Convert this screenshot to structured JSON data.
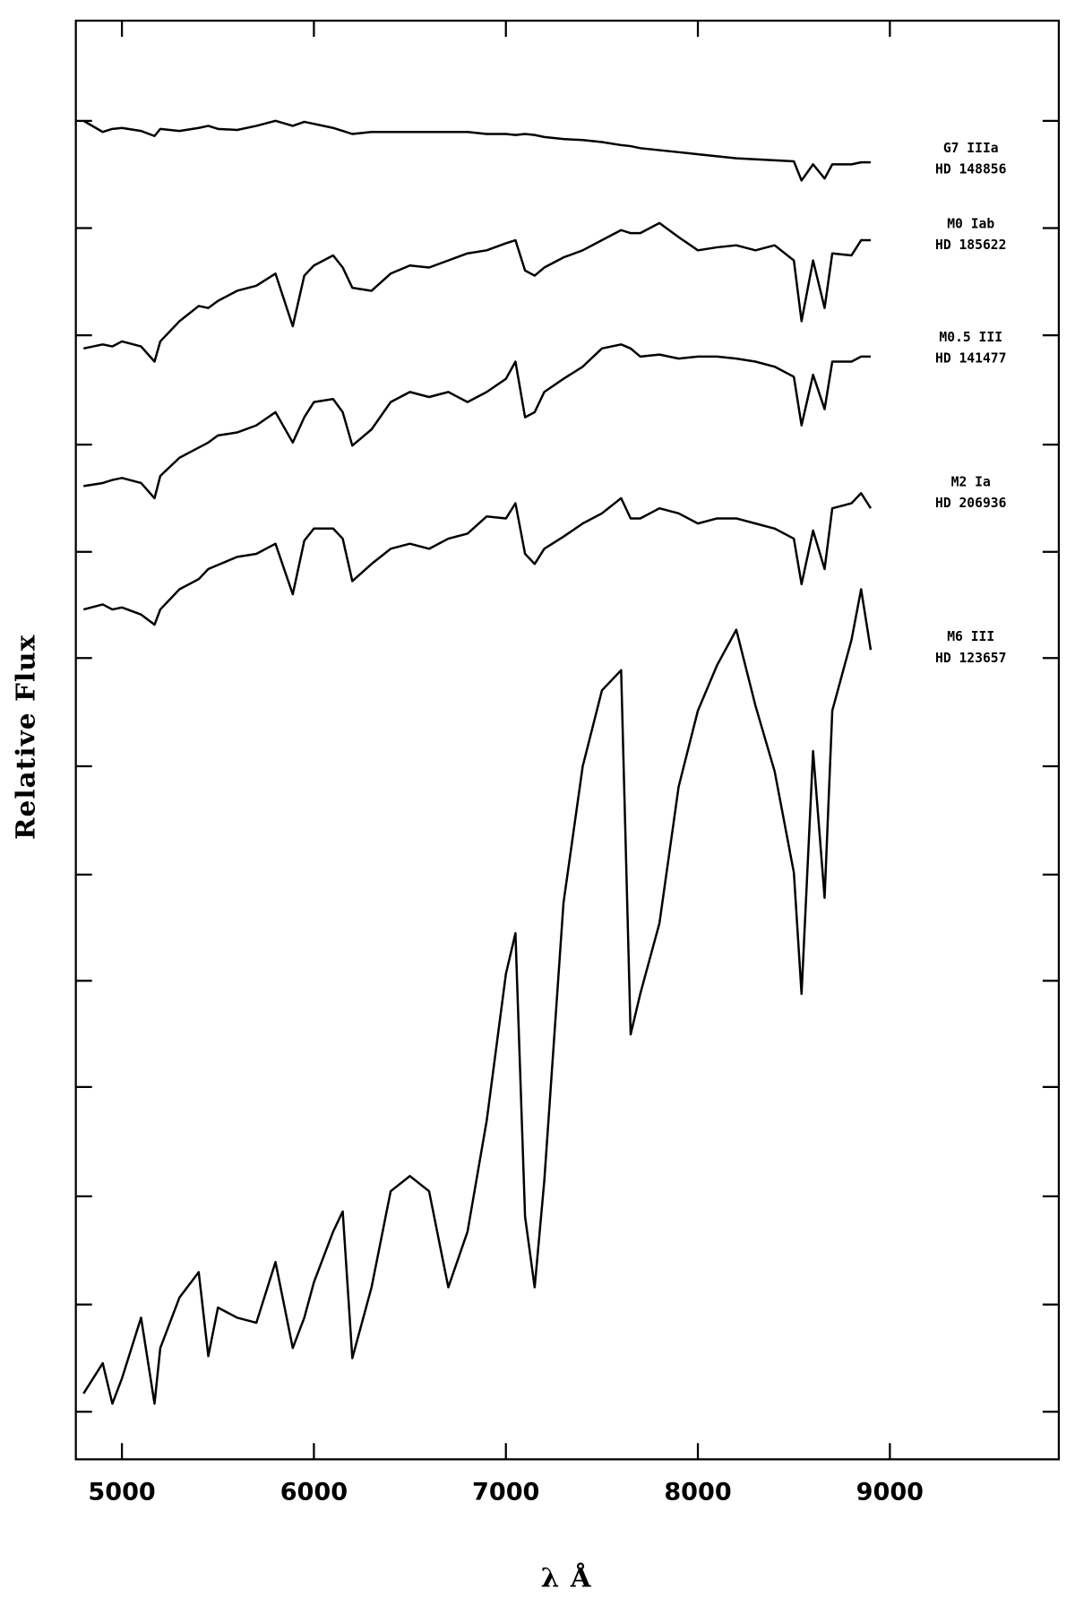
{
  "chart_data": {
    "type": "line",
    "xlabel": "λ Å",
    "ylabel": "Relative Flux",
    "x": [
      4800,
      4900,
      4950,
      5000,
      5100,
      5170,
      5200,
      5300,
      5400,
      5450,
      5500,
      5600,
      5700,
      5800,
      5890,
      5950,
      6000,
      6100,
      6150,
      6200,
      6300,
      6400,
      6500,
      6600,
      6700,
      6800,
      6900,
      7000,
      7050,
      7100,
      7150,
      7200,
      7300,
      7400,
      7500,
      7600,
      7650,
      7700,
      7800,
      7900,
      8000,
      8100,
      8200,
      8300,
      8400,
      8500,
      8540,
      8600,
      8660,
      8700,
      8800,
      8850,
      8900
    ],
    "series": [
      {
        "name": "G7 IIIa",
        "star": "HD 148856",
        "color": "#000000",
        "values": [
          1276,
          1265,
          1268,
          1269,
          1266,
          1261,
          1268,
          1266,
          1269,
          1271,
          1268,
          1267,
          1271,
          1276,
          1271,
          1275,
          1273,
          1269,
          1266,
          1263,
          1265,
          1265,
          1265,
          1265,
          1265,
          1265,
          1263,
          1263,
          1262,
          1263,
          1262,
          1260,
          1258,
          1257,
          1255,
          1252,
          1251,
          1249,
          1247,
          1245,
          1243,
          1241,
          1239,
          1238,
          1237,
          1236,
          1217,
          1233,
          1219,
          1233,
          1233,
          1235,
          1235
        ]
      },
      {
        "name": "M0 Iab",
        "star": "HD 185622",
        "color": "#000000",
        "values": [
          1051,
          1055,
          1053,
          1058,
          1053,
          1038,
          1058,
          1078,
          1093,
          1091,
          1098,
          1108,
          1113,
          1125,
          1073,
          1123,
          1133,
          1143,
          1131,
          1111,
          1108,
          1125,
          1133,
          1131,
          1138,
          1145,
          1148,
          1155,
          1158,
          1128,
          1123,
          1131,
          1141,
          1148,
          1158,
          1168,
          1165,
          1165,
          1175,
          1161,
          1148,
          1151,
          1153,
          1148,
          1153,
          1138,
          1078,
          1138,
          1091,
          1145,
          1143,
          1158,
          1158
        ]
      },
      {
        "name": "M0.5 III",
        "star": "HD 141477",
        "color": "#000000",
        "values": [
          915,
          918,
          921,
          923,
          918,
          903,
          925,
          943,
          953,
          958,
          965,
          968,
          975,
          988,
          958,
          983,
          998,
          1001,
          988,
          955,
          971,
          998,
          1008,
          1003,
          1008,
          998,
          1008,
          1021,
          1038,
          983,
          988,
          1008,
          1021,
          1033,
          1051,
          1055,
          1051,
          1043,
          1045,
          1041,
          1043,
          1043,
          1041,
          1038,
          1033,
          1023,
          975,
          1025,
          991,
          1038,
          1038,
          1043,
          1043
        ]
      },
      {
        "name": "M2 Ia",
        "star": "HD 206936",
        "color": "#000000",
        "values": [
          793,
          798,
          793,
          795,
          788,
          778,
          793,
          813,
          823,
          833,
          837,
          845,
          848,
          858,
          808,
          861,
          873,
          873,
          863,
          821,
          838,
          853,
          858,
          853,
          863,
          868,
          885,
          883,
          898,
          848,
          838,
          853,
          865,
          878,
          888,
          903,
          883,
          883,
          893,
          888,
          878,
          883,
          883,
          878,
          873,
          863,
          818,
          871,
          833,
          893,
          898,
          908,
          893
        ]
      },
      {
        "name": "M6 III",
        "star": "HD 123657",
        "color": "#000000",
        "values": [
          18,
          48,
          8,
          33,
          93,
          8,
          63,
          113,
          138,
          55,
          103,
          93,
          88,
          148,
          63,
          93,
          128,
          178,
          198,
          53,
          123,
          218,
          233,
          218,
          123,
          178,
          288,
          433,
          473,
          193,
          123,
          228,
          503,
          638,
          713,
          733,
          373,
          413,
          483,
          618,
          693,
          738,
          773,
          698,
          633,
          533,
          413,
          653,
          508,
          693,
          763,
          813,
          753
        ]
      }
    ],
    "xlim": [
      4760,
      9880
    ],
    "xticks": [
      5000,
      6000,
      7000,
      8000,
      9000
    ],
    "ylim": [
      -47,
      1375
    ],
    "yticks": [
      0,
      106,
      213,
      321,
      426,
      531,
      638,
      745,
      850,
      956,
      1064,
      1170,
      1276
    ]
  }
}
